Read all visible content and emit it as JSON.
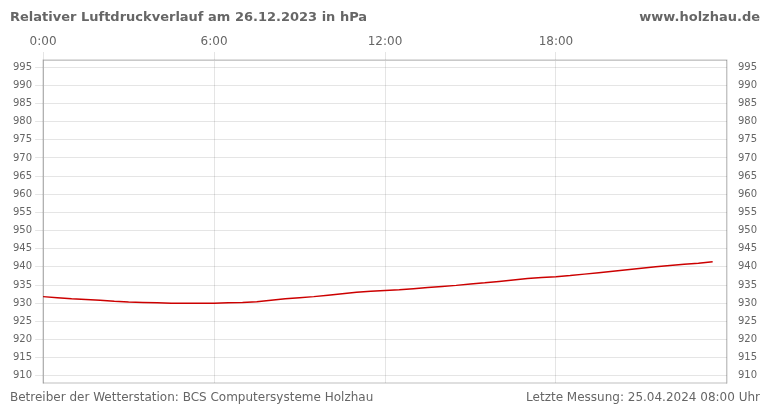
{
  "chart_data": {
    "type": "line",
    "title": "Relativer Luftdruckverlauf am 26.12.2023 in hPa",
    "annotations": [
      "www.holzhau.de",
      "Betreiber der Wetterstation: BCS Computersysteme Holzhau",
      "Letzte Messung: 25.04.2024 08:00 Uhr"
    ],
    "x": [
      0,
      0.5,
      1,
      1.5,
      2,
      2.5,
      3,
      3.5,
      4,
      4.5,
      5,
      5.5,
      6,
      6.5,
      7,
      7.5,
      8,
      8.5,
      9,
      9.5,
      10,
      10.5,
      11,
      11.5,
      12,
      12.5,
      13,
      13.5,
      14,
      14.5,
      15,
      15.5,
      16,
      16.5,
      17,
      17.5,
      18,
      18.5,
      19,
      19.5,
      20,
      20.5,
      21,
      21.5,
      22,
      22.5,
      23,
      23.5
    ],
    "values": [
      931.8,
      931.5,
      931.2,
      931.0,
      930.8,
      930.5,
      930.3,
      930.2,
      930.1,
      930.0,
      930.0,
      930.0,
      930.0,
      930.1,
      930.2,
      930.4,
      930.8,
      931.2,
      931.5,
      931.8,
      932.2,
      932.6,
      933.0,
      933.3,
      933.5,
      933.7,
      934.0,
      934.3,
      934.6,
      934.9,
      935.3,
      935.6,
      936.0,
      936.4,
      936.8,
      937.1,
      937.3,
      937.6,
      938.0,
      938.4,
      938.8,
      939.2,
      939.6,
      940.0,
      940.4,
      940.7,
      941.0,
      941.4
    ],
    "color": "#cc0000",
    "xlim": [
      0,
      24
    ],
    "xticks": [
      {
        "value": 0,
        "label": "0:00"
      },
      {
        "value": 6,
        "label": "6:00"
      },
      {
        "value": 12,
        "label": "12:00"
      },
      {
        "value": 18,
        "label": "18:00"
      }
    ],
    "ylim": [
      908,
      997
    ],
    "yticks": [
      910,
      915,
      920,
      925,
      930,
      935,
      940,
      945,
      950,
      955,
      960,
      965,
      970,
      975,
      980,
      985,
      990,
      995
    ],
    "y2lim": [
      908,
      997
    ],
    "y2ticks": [
      910,
      915,
      920,
      925,
      930,
      935,
      940,
      945,
      950,
      955,
      960,
      965,
      970,
      975,
      980,
      985,
      990,
      995
    ],
    "grid": true
  }
}
